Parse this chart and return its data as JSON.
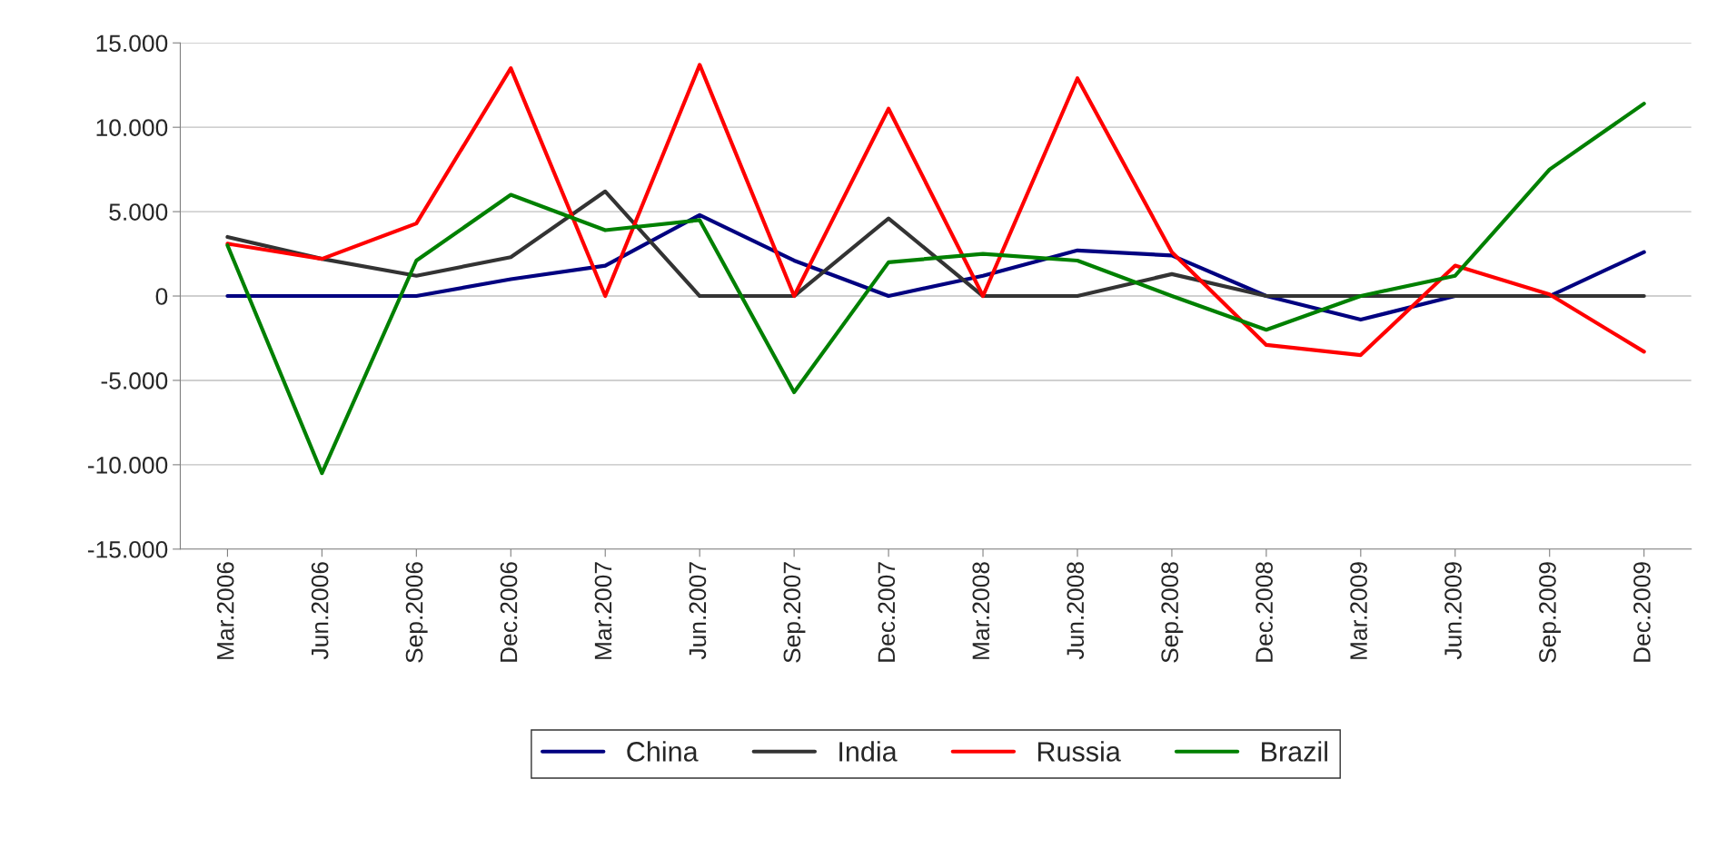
{
  "chart_data": {
    "type": "line",
    "categories": [
      "Mar.2006",
      "Jun.2006",
      "Sep.2006",
      "Dec.2006",
      "Mar.2007",
      "Jun.2007",
      "Sep.2007",
      "Dec.2007",
      "Mar.2008",
      "Jun.2008",
      "Sep.2008",
      "Dec.2008",
      "Mar.2009",
      "Jun.2009",
      "Sep.2009",
      "Dec.2009"
    ],
    "series": [
      {
        "name": "China",
        "color": "#000080",
        "values": [
          0,
          0,
          0,
          1000,
          1800,
          4800,
          2100,
          0,
          1200,
          2700,
          2400,
          0,
          -1400,
          0,
          0,
          2600
        ]
      },
      {
        "name": "India",
        "color": "#333333",
        "values": [
          3500,
          2200,
          1200,
          2300,
          6200,
          0,
          0,
          4600,
          0,
          0,
          1300,
          0,
          0,
          0,
          0,
          0
        ]
      },
      {
        "name": "Russia",
        "color": "#ff0000",
        "values": [
          3100,
          2200,
          4300,
          13500,
          0,
          13700,
          0,
          11100,
          0,
          12900,
          2600,
          -2900,
          -3500,
          1800,
          100,
          -3300
        ]
      },
      {
        "name": "Brazil",
        "color": "#008000",
        "values": [
          3000,
          -10500,
          2100,
          6000,
          3900,
          4500,
          -5700,
          2000,
          2500,
          2100,
          0,
          -2000,
          0,
          1200,
          7500,
          11400
        ]
      }
    ],
    "ylim": [
      -15000,
      15000
    ],
    "yticks": [
      {
        "value": -15000,
        "label": "-15.000"
      },
      {
        "value": -10000,
        "label": "-10.000"
      },
      {
        "value": -5000,
        "label": "-5.000"
      },
      0,
      {
        "value": 5000,
        "label": "5.000"
      },
      {
        "value": 10000,
        "label": "10.000"
      },
      {
        "value": 15000,
        "label": "15.000"
      }
    ],
    "grid": "y",
    "legend": "bottom",
    "marker": "none",
    "line_style": "solid"
  }
}
